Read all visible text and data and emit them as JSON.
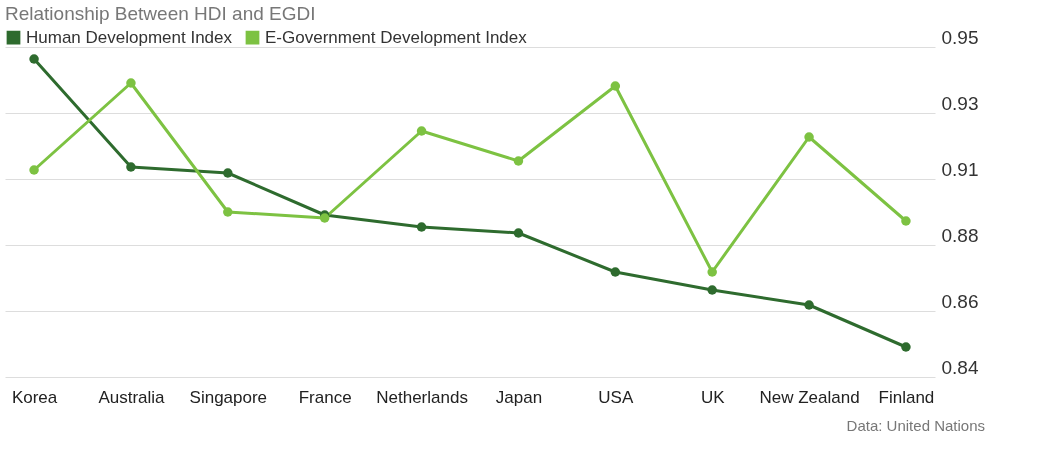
{
  "chart_data": {
    "type": "line",
    "title": "Relationship Between HDI and EGDI",
    "categories": [
      "Korea",
      "Australia",
      "Singapore",
      "France",
      "Netherlands",
      "Japan",
      "USA",
      "UK",
      "New Zealand",
      "Finland"
    ],
    "series": [
      {
        "name": "Human Development Index",
        "color": "#2e6b2e",
        "values": [
          0.946,
          0.91,
          0.908,
          0.894,
          0.89,
          0.888,
          0.875,
          0.869,
          0.864,
          0.85
        ]
      },
      {
        "name": "E-Government Development Index",
        "color": "#7dc242",
        "values": [
          0.909,
          0.938,
          0.895,
          0.893,
          0.922,
          0.912,
          0.937,
          0.875,
          0.92,
          0.892
        ]
      }
    ],
    "ylim": [
      0.84,
      0.95
    ],
    "yticks": [
      0.84,
      {
        "value": 0.862,
        "label": "0.86"
      },
      {
        "value": 0.884,
        "label": "0.88"
      },
      {
        "value": 0.906,
        "label": "0.91"
      },
      {
        "value": 0.928,
        "label": "0.93"
      },
      0.95
    ],
    "grid": "y",
    "legend": "top left",
    "marker": "circle",
    "line_style": "solid",
    "annotations": [
      "Data: United Nations"
    ]
  }
}
